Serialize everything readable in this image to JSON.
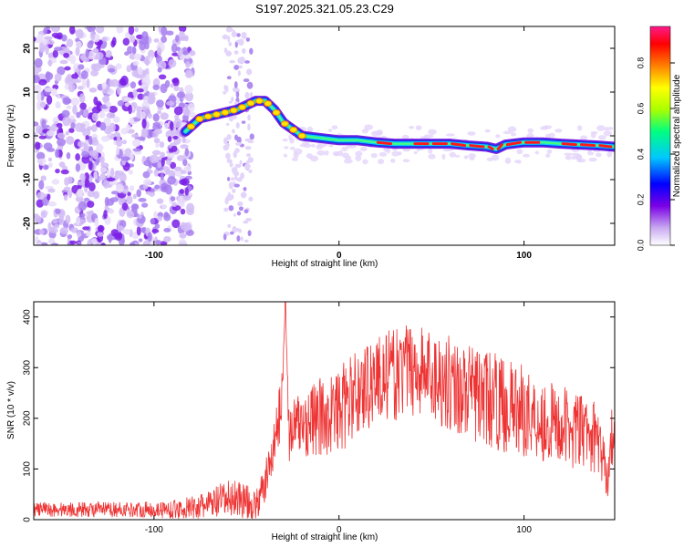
{
  "title": "S197.2025.321.05.23.C29",
  "chart_data": [
    {
      "type": "heatmap",
      "xlabel": "Height of straight line (km)",
      "ylabel": "Frequency (Hz)",
      "xlim": [
        -165,
        149
      ],
      "ylim": [
        -25,
        25
      ],
      "x_ticks": [
        -100,
        0,
        100
      ],
      "y_ticks": [
        -20,
        -10,
        0,
        10,
        20
      ],
      "colorbar": {
        "label": "Normalized spectral amplitude",
        "range": [
          0,
          0.96
        ],
        "ticks": [
          "0.0",
          "0.2",
          "0.4",
          "0.6",
          "0.8"
        ],
        "colors": [
          "#ffffff",
          "#c8a8f0",
          "#7a00e6",
          "#0000ff",
          "#00c8ff",
          "#00ff80",
          "#aaff00",
          "#ffff00",
          "#ff8000",
          "#ff0000",
          "#ff1a8c"
        ]
      },
      "ridge": {
        "x": [
          -83,
          -75,
          -65,
          -55,
          -45,
          -40,
          -35,
          -30,
          -25,
          -20,
          -10,
          0,
          10,
          20,
          30,
          40,
          50,
          60,
          70,
          80,
          85,
          90,
          100,
          110,
          120,
          130,
          140,
          149
        ],
        "y": [
          1,
          4,
          5,
          6,
          8,
          8,
          6,
          3,
          1.5,
          0,
          -0.5,
          -1,
          -1,
          -1.5,
          -1.8,
          -1.8,
          -1.8,
          -1.8,
          -2.2,
          -2.5,
          -3,
          -2,
          -1.5,
          -1.5,
          -1.8,
          -2,
          -2.2,
          -2.5
        ]
      },
      "noise_region_x": [
        -165,
        -83
      ]
    },
    {
      "type": "line",
      "xlabel": "Height of straight line (km)",
      "ylabel": "SNR (10 * v/v)",
      "xlim": [
        -165,
        149
      ],
      "ylim": [
        0,
        430
      ],
      "x_ticks": [
        -100,
        0,
        100
      ],
      "y_ticks": [
        0,
        100,
        200,
        300,
        400
      ],
      "series": [
        {
          "name": "SNR",
          "color": "#ee3333",
          "x": [
            -165,
            -150,
            -130,
            -110,
            -90,
            -75,
            -65,
            -55,
            -45,
            -40,
            -35,
            -31,
            -29,
            -27,
            -25,
            -20,
            -10,
            0,
            10,
            20,
            30,
            40,
            50,
            60,
            70,
            80,
            90,
            100,
            110,
            120,
            130,
            140,
            145,
            147,
            149
          ],
          "y": [
            20,
            20,
            20,
            20,
            20,
            25,
            35,
            45,
            25,
            70,
            150,
            230,
            440,
            160,
            180,
            190,
            200,
            215,
            250,
            280,
            285,
            300,
            285,
            270,
            250,
            240,
            225,
            215,
            195,
            185,
            175,
            160,
            80,
            150,
            200
          ],
          "spread": [
            15,
            15,
            15,
            15,
            18,
            25,
            35,
            40,
            30,
            40,
            50,
            60,
            0,
            60,
            60,
            70,
            80,
            85,
            90,
            90,
            90,
            95,
            95,
            95,
            95,
            95,
            95,
            90,
            85,
            80,
            75,
            70,
            40,
            60,
            60
          ]
        }
      ]
    }
  ]
}
